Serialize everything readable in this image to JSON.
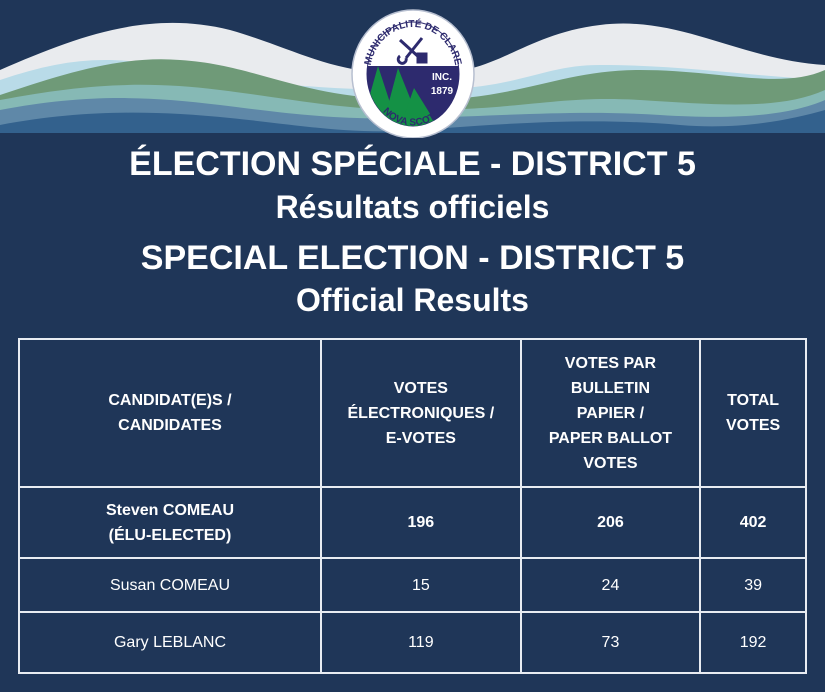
{
  "logo": {
    "arc_top": "MUNICIPALITÉ DE CLARE",
    "arc_bottom": "NOVA SCOTIA",
    "inc": "INC.",
    "year": "1879"
  },
  "colors": {
    "background": "#1f3658",
    "wave_white": "#e9ebee",
    "wave_green": "#6f9a78",
    "wave_light_blue": "#b9dbe8",
    "wave_teal": "#86b9b5",
    "wave_blue": "#5f88a8",
    "wave_dark_blue": "#33618d"
  },
  "titles": {
    "fr_line1": "ÉLECTION SPÉCIALE - DISTRICT 5",
    "fr_line2": "Résultats officiels",
    "en_line1": "SPECIAL ELECTION - DISTRICT 5",
    "en_line2": "Official Results"
  },
  "table": {
    "headers": [
      [
        "CANDIDAT(E)S /",
        "CANDIDATES"
      ],
      [
        "VOTES",
        "ÉLECTRONIQUES /",
        "E-VOTES"
      ],
      [
        "VOTES PAR",
        "BULLETIN",
        "PAPIER /",
        "PAPER BALLOT",
        "VOTES"
      ],
      [
        "TOTAL",
        "VOTES"
      ]
    ],
    "rows": [
      {
        "name": "Steven COMEAU",
        "note": "(ÉLU-ELECTED)",
        "evotes": "196",
        "paper": "206",
        "total": "402"
      },
      {
        "name": "Susan COMEAU",
        "evotes": "15",
        "paper": "24",
        "total": "39"
      },
      {
        "name": "Gary LEBLANC",
        "evotes": "119",
        "paper": "73",
        "total": "192"
      }
    ]
  }
}
